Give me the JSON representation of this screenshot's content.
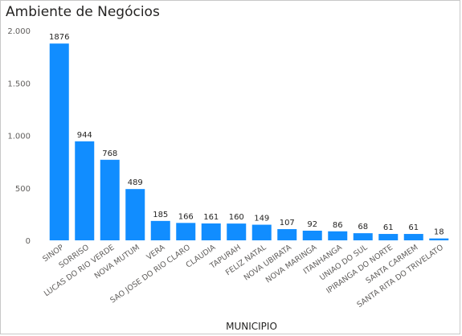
{
  "chart_data": {
    "type": "bar",
    "title": "Ambiente de Negócios",
    "xlabel": "MUNICIPIO",
    "ylabel": "",
    "ylim": [
      0,
      2000
    ],
    "yticks": [
      0,
      500,
      1000,
      1500,
      2000
    ],
    "ytick_labels": [
      "0",
      "500",
      "1.000",
      "1.500",
      "2.000"
    ],
    "grid": false,
    "legend": "none",
    "color": "#118DFF",
    "categories": [
      "SINOP",
      "SORRISO",
      "LUCAS DO RIO VERDE",
      "NOVA MUTUM",
      "VERA",
      "SAO JOSE DO RIO CLARO",
      "CLAUDIA",
      "TAPURAH",
      "FELIZ NATAL",
      "NOVA UBIRATA",
      "NOVA MARINGA",
      "ITANHANGA",
      "UNIAO DO SUL",
      "IPIRANGA DO NORTE",
      "SANTA CARMEM",
      "SANTA RITA DO TRIVELATO"
    ],
    "values": [
      1876,
      944,
      768,
      489,
      185,
      166,
      161,
      160,
      149,
      107,
      92,
      86,
      68,
      61,
      61,
      18
    ]
  }
}
